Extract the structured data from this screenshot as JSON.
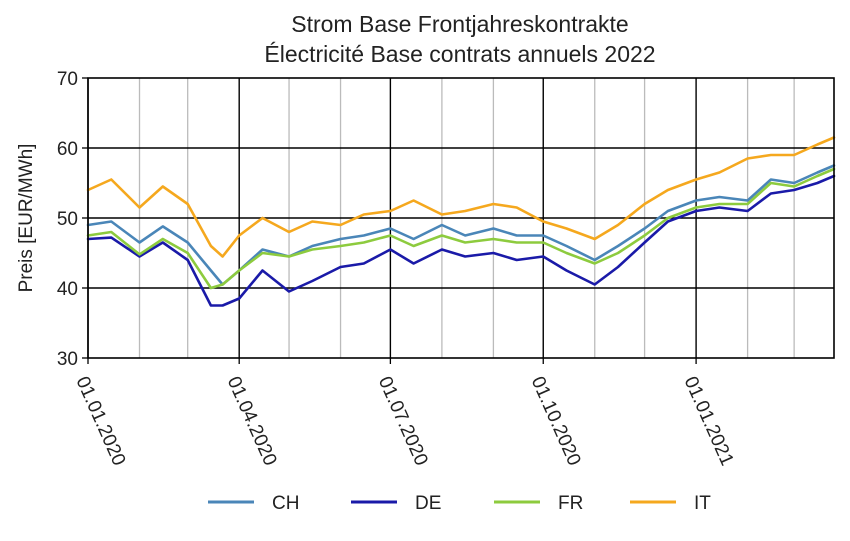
{
  "chart_data": {
    "type": "line",
    "title": [
      "Strom Base Frontjahreskontrakte",
      "Électricité Base contrats annuels 2022"
    ],
    "xlabel": "",
    "ylabel": "Preis [EUR/MWh]",
    "ylim": [
      30,
      70
    ],
    "yticks": [
      30,
      40,
      50,
      60,
      70
    ],
    "x_start": "2020-01-01",
    "x_end": "2021-03-25",
    "xticks": [
      {
        "label": "01.01.2020",
        "date": "2020-01-01"
      },
      {
        "label": "01.04.2020",
        "date": "2020-04-01"
      },
      {
        "label": "01.07.2020",
        "date": "2020-07-01"
      },
      {
        "label": "01.10.2020",
        "date": "2020-10-01"
      },
      {
        "label": "01.01.2021",
        "date": "2021-01-01"
      }
    ],
    "minor_grid_months": [
      "2020-02-01",
      "2020-03-01",
      "2020-05-01",
      "2020-06-01",
      "2020-08-01",
      "2020-09-01",
      "2020-11-01",
      "2020-12-01",
      "2021-02-01",
      "2021-03-01"
    ],
    "grid": true,
    "legend_position": "bottom",
    "x": [
      "2020-01-01",
      "2020-01-15",
      "2020-02-01",
      "2020-02-15",
      "2020-03-01",
      "2020-03-15",
      "2020-03-22",
      "2020-04-01",
      "2020-04-15",
      "2020-05-01",
      "2020-05-15",
      "2020-06-01",
      "2020-06-15",
      "2020-07-01",
      "2020-07-15",
      "2020-08-01",
      "2020-08-15",
      "2020-09-01",
      "2020-09-15",
      "2020-10-01",
      "2020-10-15",
      "2020-11-01",
      "2020-11-15",
      "2020-12-01",
      "2020-12-15",
      "2021-01-01",
      "2021-01-15",
      "2021-02-01",
      "2021-02-15",
      "2021-03-01",
      "2021-03-15",
      "2021-03-25"
    ],
    "series": [
      {
        "name": "CH",
        "color": "#4a86b8",
        "values": [
          49.0,
          49.5,
          46.5,
          48.8,
          46.5,
          42.5,
          40.5,
          42.5,
          45.5,
          44.5,
          46.0,
          47.0,
          47.5,
          48.5,
          47.0,
          49.0,
          47.5,
          48.5,
          47.5,
          47.5,
          46.0,
          44.0,
          46.0,
          48.5,
          51.0,
          52.5,
          53.0,
          52.5,
          55.5,
          55.0,
          56.5,
          57.5
        ]
      },
      {
        "name": "DE",
        "color": "#1a1aa8",
        "values": [
          47.0,
          47.2,
          44.5,
          46.5,
          44.0,
          37.5,
          37.5,
          38.5,
          42.5,
          39.5,
          41.0,
          43.0,
          43.5,
          45.5,
          43.5,
          45.5,
          44.5,
          45.0,
          44.0,
          44.5,
          42.5,
          40.5,
          43.0,
          46.5,
          49.5,
          51.0,
          51.5,
          51.0,
          53.5,
          54.0,
          55.0,
          56.0
        ]
      },
      {
        "name": "FR",
        "color": "#8dcb3e",
        "values": [
          47.5,
          48.0,
          44.8,
          47.0,
          45.0,
          40.0,
          40.5,
          42.5,
          45.0,
          44.5,
          45.5,
          46.0,
          46.5,
          47.5,
          46.0,
          47.5,
          46.5,
          47.0,
          46.5,
          46.5,
          45.0,
          43.5,
          45.0,
          47.5,
          50.0,
          51.5,
          52.0,
          52.0,
          55.0,
          54.5,
          56.0,
          57.0
        ]
      },
      {
        "name": "IT",
        "color": "#f5a81e",
        "values": [
          54.0,
          55.5,
          51.5,
          54.5,
          52.0,
          46.0,
          44.5,
          47.5,
          50.0,
          48.0,
          49.5,
          49.0,
          50.5,
          51.0,
          52.5,
          50.5,
          51.0,
          52.0,
          51.5,
          49.5,
          48.5,
          47.0,
          49.0,
          52.0,
          54.0,
          55.5,
          56.5,
          58.5,
          59.0,
          59.0,
          60.5,
          61.5
        ]
      }
    ]
  }
}
